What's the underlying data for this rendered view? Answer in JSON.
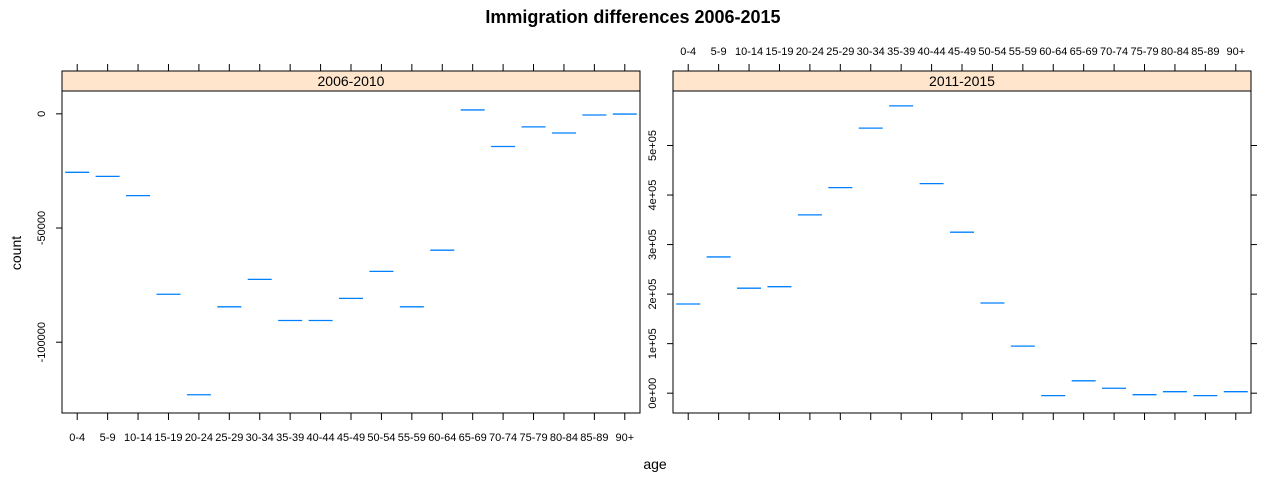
{
  "chart_data": {
    "type": "scatter",
    "marker": "horizontal-dash",
    "title": "Immigration differences 2006-2015",
    "xlabel": "age",
    "ylabel": "count",
    "color": "#0080ff",
    "strip_color": "#ffe5cc",
    "categories": [
      "0-4",
      "5-9",
      "10-14",
      "15-19",
      "20-24",
      "25-29",
      "30-34",
      "35-39",
      "40-44",
      "45-49",
      "50-54",
      "55-59",
      "60-64",
      "65-69",
      "70-74",
      "75-79",
      "80-84",
      "85-89",
      "90+"
    ],
    "panels": [
      {
        "name": "2006-2010",
        "ylim": [
          -131000,
          10000
        ],
        "yticks": [
          {
            "value": 0,
            "label": "0"
          },
          {
            "value": -50000,
            "label": "-50000"
          },
          {
            "value": -100000,
            "label": "-100000"
          }
        ],
        "values": [
          -25600,
          -27400,
          -35800,
          -79000,
          -123000,
          -84500,
          -72500,
          -90500,
          -90500,
          -80800,
          -69000,
          -84500,
          -59700,
          1700,
          -14300,
          -5700,
          -8400,
          -500,
          -100
        ]
      },
      {
        "name": "2011-2015",
        "ylim": [
          -40000,
          610000
        ],
        "yticks": [
          {
            "value": 0,
            "label": "0e+00"
          },
          {
            "value": 100000,
            "label": "1e+05"
          },
          {
            "value": 200000,
            "label": "2e+05"
          },
          {
            "value": 300000,
            "label": "3e+05"
          },
          {
            "value": 400000,
            "label": "4e+05"
          },
          {
            "value": 500000,
            "label": "5e+05"
          }
        ],
        "values": [
          180000,
          275000,
          212000,
          215000,
          360000,
          415000,
          535000,
          580000,
          423000,
          325000,
          182000,
          95000,
          -5000,
          25000,
          10000,
          -3000,
          3000,
          -5000,
          3000
        ]
      }
    ]
  }
}
